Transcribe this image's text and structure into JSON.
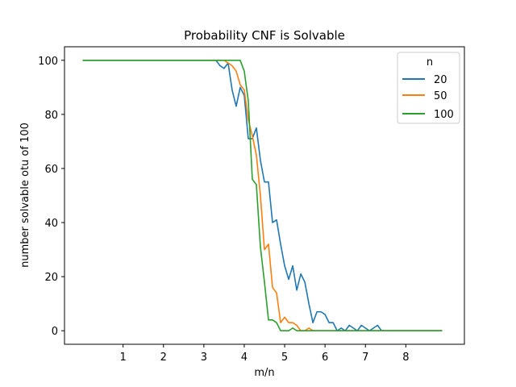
{
  "chart_data": {
    "type": "line",
    "title": "Probability CNF is Solvable",
    "xlabel": "m/n",
    "ylabel": "number solvable otu of 100",
    "xlim": [
      -0.45,
      9.45
    ],
    "ylim": [
      -5,
      105
    ],
    "xticks": [
      1,
      2,
      3,
      4,
      5,
      6,
      7,
      8
    ],
    "yticks": [
      0,
      20,
      40,
      60,
      80,
      100
    ],
    "grid": false,
    "legend": {
      "title": "n",
      "placement": "top-right"
    },
    "series": [
      {
        "name": "20",
        "color": "#1f77b4",
        "x": [
          0,
          0.1,
          0.2,
          0.3,
          0.4,
          0.5,
          0.6,
          0.7,
          0.8,
          0.9,
          1.0,
          1.1,
          1.2,
          1.3,
          1.4,
          1.5,
          1.6,
          1.7,
          1.8,
          1.9,
          2.0,
          2.1,
          2.2,
          2.3,
          2.4,
          2.5,
          2.6,
          2.7,
          2.8,
          2.9,
          3.0,
          3.1,
          3.2,
          3.3,
          3.4,
          3.5,
          3.6,
          3.7,
          3.8,
          3.9,
          4.0,
          4.1,
          4.2,
          4.3,
          4.4,
          4.5,
          4.6,
          4.7,
          4.8,
          4.9,
          5.0,
          5.1,
          5.2,
          5.3,
          5.4,
          5.5,
          5.6,
          5.7,
          5.8,
          5.9,
          6.0,
          6.1,
          6.2,
          6.3,
          6.4,
          6.5,
          6.6,
          6.7,
          6.8,
          6.9,
          7.0,
          7.1,
          7.2,
          7.3,
          7.4,
          7.5,
          7.6,
          7.7,
          7.8,
          7.9,
          8.0,
          8.1,
          8.2,
          8.3,
          8.4,
          8.5,
          8.6,
          8.7,
          8.8,
          8.9
        ],
        "values": [
          100,
          100,
          100,
          100,
          100,
          100,
          100,
          100,
          100,
          100,
          100,
          100,
          100,
          100,
          100,
          100,
          100,
          100,
          100,
          100,
          100,
          100,
          100,
          100,
          100,
          100,
          100,
          100,
          100,
          100,
          100,
          100,
          100,
          100,
          98,
          97,
          99,
          89,
          83,
          90,
          87,
          71,
          71,
          75,
          63,
          55,
          55,
          40,
          41,
          32,
          24,
          19,
          24,
          15,
          21,
          18,
          10,
          3,
          7,
          7,
          6,
          3,
          3,
          0,
          1,
          0,
          2,
          1,
          0,
          2,
          1,
          0,
          1,
          2,
          0,
          0,
          0,
          0,
          0,
          0,
          0,
          0,
          0,
          0,
          0,
          0,
          0,
          0,
          0,
          0
        ]
      },
      {
        "name": "50",
        "color": "#ff7f0e",
        "x": [
          0,
          0.1,
          0.2,
          0.3,
          0.4,
          0.5,
          0.6,
          0.7,
          0.8,
          0.9,
          1.0,
          1.1,
          1.2,
          1.3,
          1.4,
          1.5,
          1.6,
          1.7,
          1.8,
          1.9,
          2.0,
          2.1,
          2.2,
          2.3,
          2.4,
          2.5,
          2.6,
          2.7,
          2.8,
          2.9,
          3.0,
          3.1,
          3.2,
          3.3,
          3.4,
          3.5,
          3.6,
          3.7,
          3.8,
          3.9,
          4.0,
          4.1,
          4.2,
          4.3,
          4.4,
          4.5,
          4.6,
          4.7,
          4.8,
          4.9,
          5.0,
          5.1,
          5.2,
          5.3,
          5.4,
          5.5,
          5.6,
          5.7,
          5.8,
          5.9,
          6.0,
          6.1,
          6.2,
          6.3,
          6.4,
          6.5,
          6.6,
          6.7,
          6.8,
          6.9,
          7.0,
          7.1,
          7.2,
          7.3,
          7.4,
          7.5,
          7.6,
          7.7,
          7.8,
          7.9,
          8.0,
          8.1,
          8.2,
          8.3,
          8.4,
          8.5,
          8.6,
          8.7,
          8.8,
          8.9
        ],
        "values": [
          100,
          100,
          100,
          100,
          100,
          100,
          100,
          100,
          100,
          100,
          100,
          100,
          100,
          100,
          100,
          100,
          100,
          100,
          100,
          100,
          100,
          100,
          100,
          100,
          100,
          100,
          100,
          100,
          100,
          100,
          100,
          100,
          100,
          100,
          100,
          100,
          99,
          98,
          96,
          91,
          89,
          78,
          72,
          65,
          50,
          30,
          32,
          16,
          14,
          3,
          5,
          3,
          3,
          2,
          0,
          0,
          1,
          0,
          0,
          0,
          0,
          0,
          0,
          0,
          0,
          0,
          0,
          0,
          0,
          0,
          0,
          0,
          0,
          0,
          0,
          0,
          0,
          0,
          0,
          0,
          0,
          0,
          0,
          0,
          0,
          0,
          0,
          0,
          0,
          0
        ]
      },
      {
        "name": "100",
        "color": "#2ca02c",
        "x": [
          0,
          0.1,
          0.2,
          0.3,
          0.4,
          0.5,
          0.6,
          0.7,
          0.8,
          0.9,
          1.0,
          1.1,
          1.2,
          1.3,
          1.4,
          1.5,
          1.6,
          1.7,
          1.8,
          1.9,
          2.0,
          2.1,
          2.2,
          2.3,
          2.4,
          2.5,
          2.6,
          2.7,
          2.8,
          2.9,
          3.0,
          3.1,
          3.2,
          3.3,
          3.4,
          3.5,
          3.6,
          3.7,
          3.8,
          3.9,
          4.0,
          4.1,
          4.2,
          4.3,
          4.4,
          4.5,
          4.6,
          4.7,
          4.8,
          4.9,
          5.0,
          5.1,
          5.2,
          5.3,
          5.4,
          5.5,
          5.6,
          5.7,
          5.8,
          5.9,
          6.0,
          6.1,
          6.2,
          6.3,
          6.4,
          6.5,
          6.6,
          6.7,
          6.8,
          6.9,
          7.0,
          7.1,
          7.2,
          7.3,
          7.4,
          7.5,
          7.6,
          7.7,
          7.8,
          7.9,
          8.0,
          8.1,
          8.2,
          8.3,
          8.4,
          8.5,
          8.6,
          8.7,
          8.8,
          8.9
        ],
        "values": [
          100,
          100,
          100,
          100,
          100,
          100,
          100,
          100,
          100,
          100,
          100,
          100,
          100,
          100,
          100,
          100,
          100,
          100,
          100,
          100,
          100,
          100,
          100,
          100,
          100,
          100,
          100,
          100,
          100,
          100,
          100,
          100,
          100,
          100,
          100,
          100,
          100,
          100,
          100,
          100,
          96,
          85,
          56,
          54,
          31,
          18,
          4,
          4,
          3,
          0,
          0,
          0,
          1,
          0,
          0,
          0,
          0,
          0,
          0,
          0,
          0,
          0,
          0,
          0,
          0,
          0,
          0,
          0,
          0,
          0,
          0,
          0,
          0,
          0,
          0,
          0,
          0,
          0,
          0,
          0,
          0,
          0,
          0,
          0,
          0,
          0,
          0,
          0,
          0,
          0
        ]
      }
    ]
  }
}
